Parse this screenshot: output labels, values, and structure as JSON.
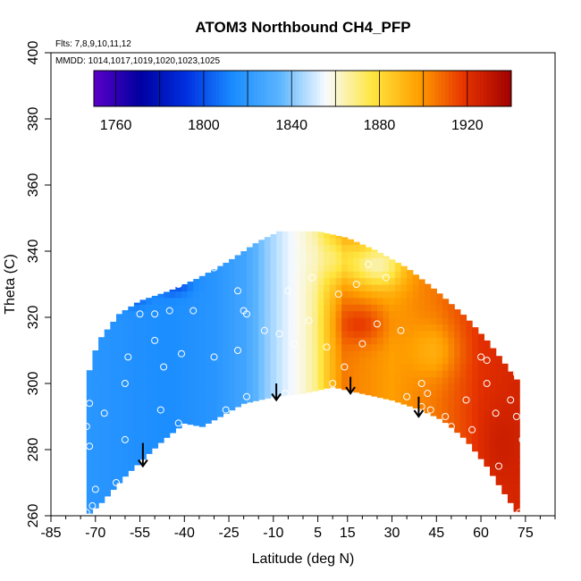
{
  "chart_data": {
    "type": "heatmap",
    "title": "ATOM3 Northbound CH4_PFP",
    "flights_label": "Flts: 7,8,9,10,11,12",
    "dates_label": "MMDD: 1014,1017,1019,1020,1023,1025",
    "xlabel": "Latitude (deg N)",
    "ylabel": "Theta (C)",
    "xlim": [
      -85,
      85
    ],
    "ylim": [
      260,
      400
    ],
    "x_ticks": [
      -85,
      -70,
      -55,
      -40,
      -25,
      -10,
      5,
      15,
      30,
      45,
      60,
      75
    ],
    "x_minor_step": 5,
    "y_ticks": [
      260,
      280,
      300,
      320,
      340,
      360,
      380,
      400
    ],
    "colorbar": {
      "min": 1750,
      "max": 1940,
      "tick_values": [
        1760,
        1800,
        1840,
        1880,
        1920
      ],
      "line_step": 20,
      "colors": [
        "#5a00c8",
        "#0000a0",
        "#0030e0",
        "#1a8cff",
        "#5ab4ff",
        "#f8fbff",
        "#ffe640",
        "#ffa000",
        "#e63200",
        "#a00000"
      ]
    },
    "field": {
      "lat_range": [
        -73,
        73
      ],
      "top_boundary": [
        [
          -73,
          300
        ],
        [
          -71,
          308
        ],
        [
          -68,
          314
        ],
        [
          -62,
          321
        ],
        [
          -55,
          325
        ],
        [
          -45,
          328
        ],
        [
          -35,
          332
        ],
        [
          -25,
          337
        ],
        [
          -15,
          343
        ],
        [
          -8,
          346
        ],
        [
          5,
          346
        ],
        [
          15,
          344
        ],
        [
          25,
          340
        ],
        [
          35,
          335
        ],
        [
          45,
          328
        ],
        [
          55,
          320
        ],
        [
          62,
          313
        ],
        [
          68,
          306
        ],
        [
          73,
          300
        ]
      ],
      "bottom_boundary": [
        [
          -73,
          260
        ],
        [
          -68,
          264
        ],
        [
          -60,
          272
        ],
        [
          -53,
          278
        ],
        [
          -47,
          283
        ],
        [
          -40,
          288
        ],
        [
          -34,
          287
        ],
        [
          -26,
          291
        ],
        [
          -20,
          294
        ],
        [
          -10,
          296
        ],
        [
          0,
          297
        ],
        [
          10,
          299
        ],
        [
          20,
          297
        ],
        [
          30,
          295
        ],
        [
          40,
          292
        ],
        [
          47,
          289
        ],
        [
          55,
          283
        ],
        [
          62,
          275
        ],
        [
          67,
          268
        ],
        [
          73,
          260
        ]
      ],
      "base_profile": [
        [
          -90,
          1822
        ],
        [
          -58,
          1816
        ],
        [
          -45,
          1814
        ],
        [
          -30,
          1818
        ],
        [
          -20,
          1826
        ],
        [
          -12,
          1842
        ],
        [
          -6,
          1852
        ],
        [
          0,
          1860
        ],
        [
          4,
          1868
        ],
        [
          8,
          1885
        ],
        [
          14,
          1905
        ],
        [
          20,
          1902
        ],
        [
          30,
          1898
        ],
        [
          45,
          1906
        ],
        [
          60,
          1920
        ],
        [
          90,
          1930
        ]
      ],
      "anomalies": [
        {
          "lat": -70,
          "theta": 324,
          "value": -50,
          "spread_lat": 3.5,
          "spread_theta": 4
        },
        {
          "lat": -59,
          "theta": 327,
          "value": -35,
          "spread_lat": 5,
          "spread_theta": 3
        },
        {
          "lat": -44,
          "theta": 330,
          "value": -18,
          "spread_lat": 6,
          "spread_theta": 3
        },
        {
          "lat": 20,
          "theta": 318,
          "value": 15,
          "spread_lat": 8,
          "spread_theta": 6
        },
        {
          "lat": 25,
          "theta": 336,
          "value": -35,
          "spread_lat": 9,
          "spread_theta": 7
        },
        {
          "lat": 12,
          "theta": 338,
          "value": -20,
          "spread_lat": 7,
          "spread_theta": 8
        },
        {
          "lat": 45,
          "theta": 310,
          "value": -12,
          "spread_lat": 8,
          "spread_theta": 8
        },
        {
          "lat": 66,
          "theta": 282,
          "value": 5,
          "spread_lat": 6,
          "spread_theta": 12
        }
      ]
    },
    "samples": [
      [
        -73,
        261
      ],
      [
        -71,
        263
      ],
      [
        -70,
        268
      ],
      [
        -63,
        270
      ],
      [
        -72,
        281
      ],
      [
        -60,
        283
      ],
      [
        -60,
        300
      ],
      [
        -59,
        308
      ],
      [
        -47,
        305
      ],
      [
        -50,
        313
      ],
      [
        -45,
        322
      ],
      [
        -50,
        321
      ],
      [
        -55,
        321
      ],
      [
        -42,
        330
      ],
      [
        -40,
        332
      ],
      [
        -30,
        335
      ],
      [
        -25,
        340
      ],
      [
        -22,
        328
      ],
      [
        -19,
        321
      ],
      [
        -20,
        322
      ],
      [
        -22,
        310
      ],
      [
        -30,
        308
      ],
      [
        -37,
        322
      ],
      [
        -41,
        309
      ],
      [
        -42,
        288
      ],
      [
        -48,
        292
      ],
      [
        -73,
        287
      ],
      [
        -72,
        294
      ],
      [
        -67,
        291
      ],
      [
        -26,
        292
      ],
      [
        -19,
        296
      ],
      [
        -13,
        316
      ],
      [
        -6,
        297
      ],
      [
        -8,
        315
      ],
      [
        -3,
        312
      ],
      [
        -5,
        328
      ],
      [
        3,
        332
      ],
      [
        2,
        319
      ],
      [
        8,
        311
      ],
      [
        10,
        300
      ],
      [
        12,
        327
      ],
      [
        18,
        296
      ],
      [
        14,
        305
      ],
      [
        20,
        312
      ],
      [
        18,
        330
      ],
      [
        22,
        336
      ],
      [
        25,
        318
      ],
      [
        28,
        332
      ],
      [
        33,
        316
      ],
      [
        35,
        296
      ],
      [
        40,
        293
      ],
      [
        42,
        297
      ],
      [
        43,
        292
      ],
      [
        40,
        300
      ],
      [
        48,
        290
      ],
      [
        50,
        287
      ],
      [
        55,
        295
      ],
      [
        57,
        286
      ],
      [
        60,
        308
      ],
      [
        62,
        307
      ],
      [
        62,
        300
      ],
      [
        65,
        291
      ],
      [
        66,
        275
      ],
      [
        70,
        295
      ],
      [
        72,
        303
      ],
      [
        73,
        261
      ],
      [
        74,
        283
      ],
      [
        72,
        290
      ]
    ],
    "arrows": [
      {
        "lat": -54,
        "theta_top": 282,
        "theta_tip": 275
      },
      {
        "lat": -9,
        "theta_top": 300,
        "theta_tip": 295
      },
      {
        "lat": 16,
        "theta_top": 302,
        "theta_tip": 297
      },
      {
        "lat": 39,
        "theta_top": 296,
        "theta_tip": 290
      }
    ]
  }
}
